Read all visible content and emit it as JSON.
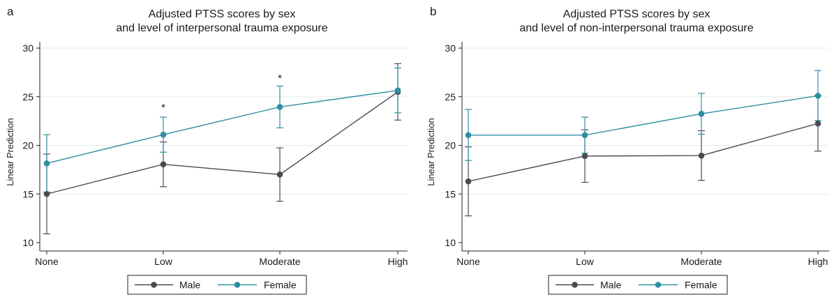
{
  "chart_data": [
    {
      "type": "line",
      "panel_label": "a",
      "title_lines": [
        "Adjusted PTSS scores by sex",
        "and level of interpersonal trauma exposure"
      ],
      "ylabel": "Linear Prediction",
      "xlabel": "",
      "categories": [
        "None",
        "Low",
        "Moderate",
        "High"
      ],
      "ylim": [
        10,
        30
      ],
      "yticks": [
        "10",
        "15",
        "20",
        "25",
        "30"
      ],
      "grid": "horizontal",
      "legend_position": "bottom-center",
      "series": [
        {
          "name": "Male",
          "color": "#4a4a52",
          "values": [
            15.0,
            18.05,
            17.0,
            25.5
          ],
          "lower": [
            10.9,
            15.75,
            14.25,
            22.6
          ],
          "upper": [
            19.1,
            20.35,
            19.75,
            28.4
          ]
        },
        {
          "name": "Female",
          "color": "#2e8fa3",
          "values": [
            18.15,
            21.1,
            23.95,
            25.65
          ],
          "lower": [
            15.2,
            19.3,
            21.8,
            23.35
          ],
          "upper": [
            21.1,
            22.9,
            26.1,
            27.95
          ]
        }
      ],
      "annotations": [
        {
          "text": "*",
          "category": "Low",
          "y": 24.2
        },
        {
          "text": "*",
          "category": "Moderate",
          "y": 27.2
        }
      ]
    },
    {
      "type": "line",
      "panel_label": "b",
      "title_lines": [
        "Adjusted PTSS scores by sex",
        "and level of non-interpersonal trauma exposure"
      ],
      "ylabel": "Linear Prediction",
      "xlabel": "",
      "categories": [
        "None",
        "Low",
        "Moderate",
        "High"
      ],
      "ylim": [
        10,
        30
      ],
      "yticks": [
        "10",
        "15",
        "20",
        "25",
        "30"
      ],
      "grid": "horizontal",
      "legend_position": "bottom-center",
      "series": [
        {
          "name": "Male",
          "color": "#4a4a52",
          "values": [
            16.3,
            18.9,
            18.95,
            22.25
          ],
          "lower": [
            12.75,
            16.2,
            16.4,
            19.4
          ],
          "upper": [
            19.85,
            21.6,
            21.5,
            25.1
          ]
        },
        {
          "name": "Female",
          "color": "#2e8fa3",
          "values": [
            21.05,
            21.05,
            23.25,
            25.1
          ],
          "lower": [
            18.45,
            19.2,
            21.15,
            22.55
          ],
          "upper": [
            23.7,
            22.9,
            25.35,
            27.7
          ]
        }
      ],
      "annotations": []
    }
  ]
}
